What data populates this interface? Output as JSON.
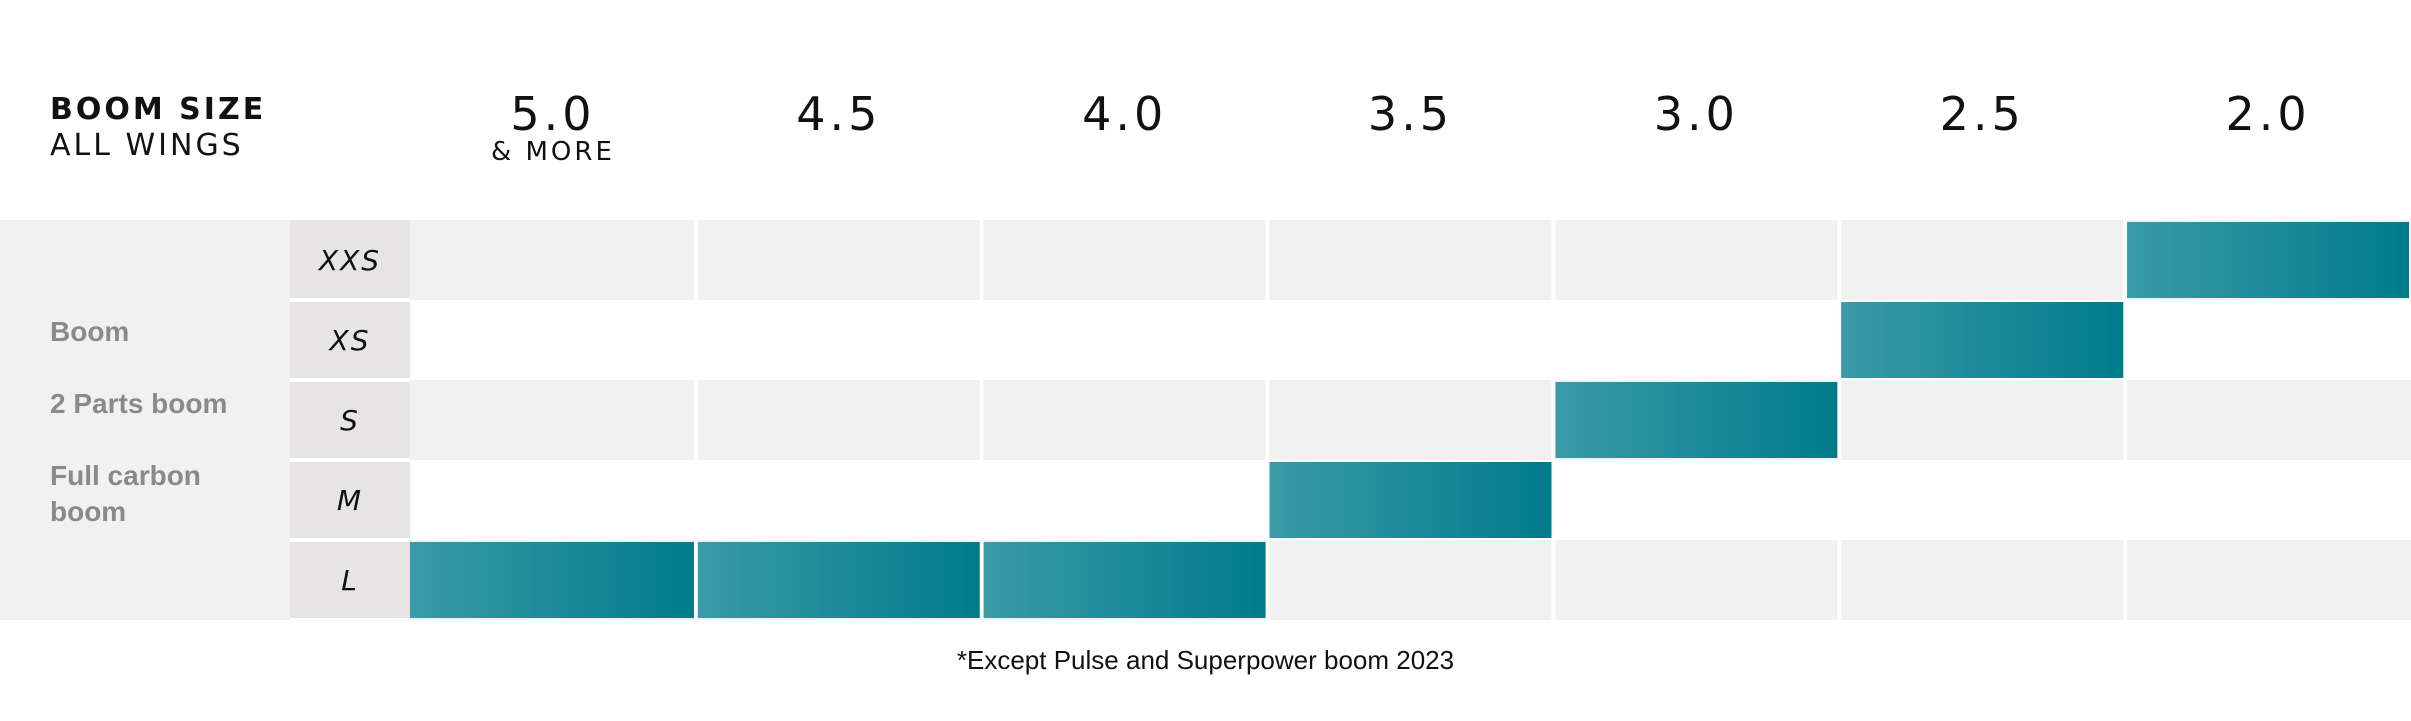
{
  "header": {
    "title_line1": "BOOM SIZE",
    "title_line2": "ALL WINGS"
  },
  "left_labels": [
    "Boom",
    "2 Parts boom",
    "Full carbon boom"
  ],
  "footnote": "*Except Pulse and Superpower boom 2023",
  "colors": {
    "highlight_start": "#3a9aa8",
    "highlight_end": "#007b8a",
    "row_gray": "#f1f1f1",
    "row_white": "#ffffff",
    "size_cell_bg": "#e6e4e4",
    "label_gray": "#8a8a8a"
  },
  "chart_data": {
    "type": "table",
    "columns": [
      {
        "label": "5.0",
        "sublabel": "& MORE"
      },
      {
        "label": "4.5",
        "sublabel": ""
      },
      {
        "label": "4.0",
        "sublabel": ""
      },
      {
        "label": "3.5",
        "sublabel": ""
      },
      {
        "label": "3.0",
        "sublabel": ""
      },
      {
        "label": "2.5",
        "sublabel": ""
      },
      {
        "label": "2.0",
        "sublabel": ""
      }
    ],
    "rows": [
      "XXS",
      "XS",
      "S",
      "M",
      "L"
    ],
    "highlights": [
      {
        "row": "XXS",
        "columns": [
          "2.0"
        ]
      },
      {
        "row": "XS",
        "columns": [
          "2.5"
        ]
      },
      {
        "row": "S",
        "columns": [
          "3.0"
        ]
      },
      {
        "row": "M",
        "columns": [
          "3.5"
        ]
      },
      {
        "row": "L",
        "columns": [
          "5.0",
          "4.5",
          "4.0"
        ]
      }
    ]
  }
}
